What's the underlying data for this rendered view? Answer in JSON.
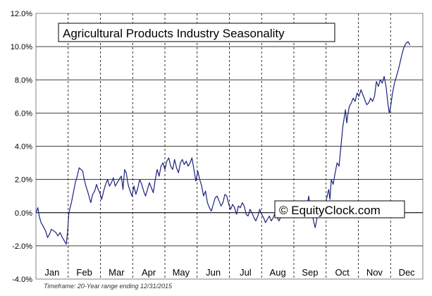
{
  "chart_data": {
    "type": "line",
    "title": "Agricultural Products Industry Seasonality",
    "watermark": "© EquityClock.com",
    "footer": "Timeframe: 20-Year range ending 12/31/2015",
    "xlabel": "",
    "ylabel": "",
    "ylim": [
      -4,
      12
    ],
    "yticks": [
      -4,
      -2,
      0,
      2,
      4,
      6,
      8,
      10,
      12
    ],
    "ytick_labels": [
      "-4.0%",
      "-2.0%",
      "0.0%",
      "2.0%",
      "4.0%",
      "6.0%",
      "8.0%",
      "10.0%",
      "12.0%"
    ],
    "months": [
      "Jan",
      "Feb",
      "Mar",
      "Apr",
      "May",
      "Jun",
      "Jul",
      "Aug",
      "Sep",
      "Oct",
      "Nov",
      "Dec"
    ],
    "grid": {
      "vertical": "dashed",
      "horizontal": "solid"
    },
    "x_unit": "month of year (0 = Jan 1, 12 = Dec 31)",
    "series": [
      {
        "name": "",
        "color": "#1a237e",
        "points": [
          [
            0.0,
            0.0
          ],
          [
            0.06,
            0.3
          ],
          [
            0.1,
            -0.2
          ],
          [
            0.16,
            -0.6
          ],
          [
            0.22,
            -0.8
          ],
          [
            0.3,
            -1.1
          ],
          [
            0.36,
            -1.5
          ],
          [
            0.42,
            -1.3
          ],
          [
            0.48,
            -1.0
          ],
          [
            0.55,
            -1.1
          ],
          [
            0.62,
            -1.2
          ],
          [
            0.68,
            -1.4
          ],
          [
            0.75,
            -1.2
          ],
          [
            0.82,
            -1.5
          ],
          [
            0.88,
            -1.7
          ],
          [
            0.94,
            -1.9
          ],
          [
            0.98,
            -1.2
          ],
          [
            1.02,
            0.0
          ],
          [
            1.06,
            0.3
          ],
          [
            1.1,
            0.6
          ],
          [
            1.16,
            1.2
          ],
          [
            1.22,
            1.8
          ],
          [
            1.28,
            2.2
          ],
          [
            1.34,
            2.7
          ],
          [
            1.4,
            2.6
          ],
          [
            1.45,
            2.5
          ],
          [
            1.5,
            2.0
          ],
          [
            1.55,
            1.6
          ],
          [
            1.6,
            1.3
          ],
          [
            1.66,
            0.9
          ],
          [
            1.7,
            0.6
          ],
          [
            1.76,
            1.1
          ],
          [
            1.82,
            1.3
          ],
          [
            1.88,
            1.7
          ],
          [
            1.93,
            1.4
          ],
          [
            1.98,
            1.2
          ],
          [
            2.04,
            0.8
          ],
          [
            2.1,
            1.3
          ],
          [
            2.16,
            1.7
          ],
          [
            2.22,
            2.0
          ],
          [
            2.28,
            1.6
          ],
          [
            2.34,
            1.8
          ],
          [
            2.4,
            2.1
          ],
          [
            2.46,
            1.6
          ],
          [
            2.52,
            1.8
          ],
          [
            2.58,
            2.0
          ],
          [
            2.65,
            2.2
          ],
          [
            2.7,
            1.4
          ],
          [
            2.75,
            2.6
          ],
          [
            2.8,
            2.4
          ],
          [
            2.86,
            1.7
          ],
          [
            2.92,
            1.3
          ],
          [
            2.98,
            1.0
          ],
          [
            3.04,
            1.6
          ],
          [
            3.1,
            1.1
          ],
          [
            3.16,
            1.5
          ],
          [
            3.22,
            2.0
          ],
          [
            3.28,
            1.7
          ],
          [
            3.34,
            1.3
          ],
          [
            3.4,
            1.0
          ],
          [
            3.46,
            1.4
          ],
          [
            3.52,
            1.8
          ],
          [
            3.58,
            1.5
          ],
          [
            3.64,
            1.2
          ],
          [
            3.7,
            2.0
          ],
          [
            3.76,
            2.6
          ],
          [
            3.82,
            2.2
          ],
          [
            3.88,
            2.8
          ],
          [
            3.94,
            3.0
          ],
          [
            4.0,
            2.6
          ],
          [
            4.06,
            3.1
          ],
          [
            4.12,
            3.3
          ],
          [
            4.18,
            2.8
          ],
          [
            4.24,
            2.6
          ],
          [
            4.3,
            3.2
          ],
          [
            4.36,
            2.7
          ],
          [
            4.42,
            2.4
          ],
          [
            4.48,
            3.0
          ],
          [
            4.54,
            3.2
          ],
          [
            4.6,
            2.9
          ],
          [
            4.66,
            3.1
          ],
          [
            4.72,
            2.8
          ],
          [
            4.78,
            3.0
          ],
          [
            4.84,
            3.3
          ],
          [
            4.9,
            2.6
          ],
          [
            4.96,
            1.9
          ],
          [
            5.02,
            2.5
          ],
          [
            5.08,
            2.0
          ],
          [
            5.14,
            1.6
          ],
          [
            5.2,
            1.0
          ],
          [
            5.26,
            1.3
          ],
          [
            5.32,
            0.6
          ],
          [
            5.38,
            0.3
          ],
          [
            5.44,
            0.1
          ],
          [
            5.5,
            0.5
          ],
          [
            5.56,
            0.9
          ],
          [
            5.62,
            1.0
          ],
          [
            5.68,
            0.7
          ],
          [
            5.74,
            0.4
          ],
          [
            5.8,
            0.6
          ],
          [
            5.86,
            1.1
          ],
          [
            5.92,
            1.0
          ],
          [
            5.98,
            0.5
          ],
          [
            6.04,
            0.2
          ],
          [
            6.1,
            0.5
          ],
          [
            6.16,
            0.3
          ],
          [
            6.22,
            -0.1
          ],
          [
            6.28,
            0.4
          ],
          [
            6.34,
            0.3
          ],
          [
            6.4,
            0.6
          ],
          [
            6.46,
            0.4
          ],
          [
            6.52,
            -0.1
          ],
          [
            6.58,
            -0.2
          ],
          [
            6.64,
            0.2
          ],
          [
            6.7,
            0.0
          ],
          [
            6.76,
            -0.3
          ],
          [
            6.82,
            -0.5
          ],
          [
            6.88,
            -0.2
          ],
          [
            6.94,
            0.2
          ],
          [
            7.0,
            -0.1
          ],
          [
            7.06,
            -0.3
          ],
          [
            7.12,
            -0.6
          ],
          [
            7.18,
            -0.4
          ],
          [
            7.24,
            -0.2
          ],
          [
            7.3,
            -0.5
          ],
          [
            7.36,
            -0.3
          ],
          [
            7.42,
            0.0
          ],
          [
            7.48,
            -0.3
          ],
          [
            7.54,
            -0.5
          ],
          [
            7.6,
            -0.2
          ],
          [
            7.66,
            0.0
          ],
          [
            7.72,
            0.1
          ],
          [
            7.78,
            -0.2
          ],
          [
            7.84,
            -0.3
          ],
          [
            7.9,
            -0.1
          ],
          [
            7.96,
            0.0
          ],
          [
            8.02,
            -0.2
          ],
          [
            8.1,
            -0.1
          ],
          [
            8.18,
            0.1
          ],
          [
            8.26,
            -0.2
          ],
          [
            8.34,
            0.1
          ],
          [
            8.4,
            0.2
          ],
          [
            8.46,
            1.0
          ],
          [
            8.52,
            0.1
          ],
          [
            8.58,
            -0.2
          ],
          [
            8.62,
            -0.6
          ],
          [
            8.66,
            -0.9
          ],
          [
            8.72,
            -0.3
          ],
          [
            8.78,
            0.3
          ],
          [
            8.84,
            0.2
          ],
          [
            8.9,
            0.5
          ],
          [
            8.96,
            0.3
          ],
          [
            9.02,
            0.9
          ],
          [
            9.08,
            1.4
          ],
          [
            9.12,
            0.8
          ],
          [
            9.16,
            2.0
          ],
          [
            9.22,
            1.7
          ],
          [
            9.28,
            2.4
          ],
          [
            9.34,
            3.0
          ],
          [
            9.4,
            2.8
          ],
          [
            9.44,
            3.6
          ],
          [
            9.48,
            4.4
          ],
          [
            9.52,
            5.2
          ],
          [
            9.56,
            5.7
          ],
          [
            9.6,
            6.2
          ],
          [
            9.64,
            5.4
          ],
          [
            9.68,
            6.0
          ],
          [
            9.72,
            6.4
          ],
          [
            9.78,
            6.6
          ],
          [
            9.84,
            6.9
          ],
          [
            9.9,
            6.7
          ],
          [
            9.96,
            7.2
          ],
          [
            10.02,
            7.0
          ],
          [
            10.08,
            7.4
          ],
          [
            10.14,
            7.1
          ],
          [
            10.2,
            6.8
          ],
          [
            10.26,
            6.5
          ],
          [
            10.32,
            6.6
          ],
          [
            10.38,
            6.9
          ],
          [
            10.44,
            6.7
          ],
          [
            10.5,
            7.0
          ],
          [
            10.56,
            7.9
          ],
          [
            10.62,
            7.6
          ],
          [
            10.68,
            8.0
          ],
          [
            10.74,
            7.8
          ],
          [
            10.8,
            8.2
          ],
          [
            10.86,
            7.6
          ],
          [
            10.92,
            6.5
          ],
          [
            10.96,
            6.0
          ],
          [
            11.0,
            6.4
          ],
          [
            11.06,
            7.2
          ],
          [
            11.12,
            7.8
          ],
          [
            11.18,
            8.2
          ],
          [
            11.24,
            8.6
          ],
          [
            11.3,
            9.1
          ],
          [
            11.36,
            9.6
          ],
          [
            11.42,
            10.0
          ],
          [
            11.48,
            10.2
          ],
          [
            11.54,
            10.3
          ],
          [
            11.6,
            10.1
          ]
        ]
      }
    ]
  }
}
